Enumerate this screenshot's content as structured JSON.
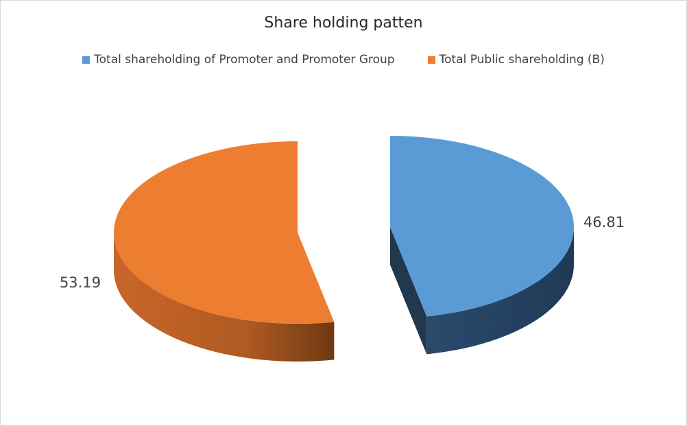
{
  "chart_data": {
    "type": "pie",
    "style": "3d-exploded",
    "title": "Share holding patten",
    "legend_position": "top",
    "series": [
      {
        "name": "Total shareholding of Promoter and Promoter Group",
        "value": 46.81,
        "label": "46.81",
        "color": "#5B9BD5"
      },
      {
        "name": "Total Public shareholding (B)",
        "value": 53.19,
        "label": "53.19",
        "color": "#ED7D31"
      }
    ]
  }
}
